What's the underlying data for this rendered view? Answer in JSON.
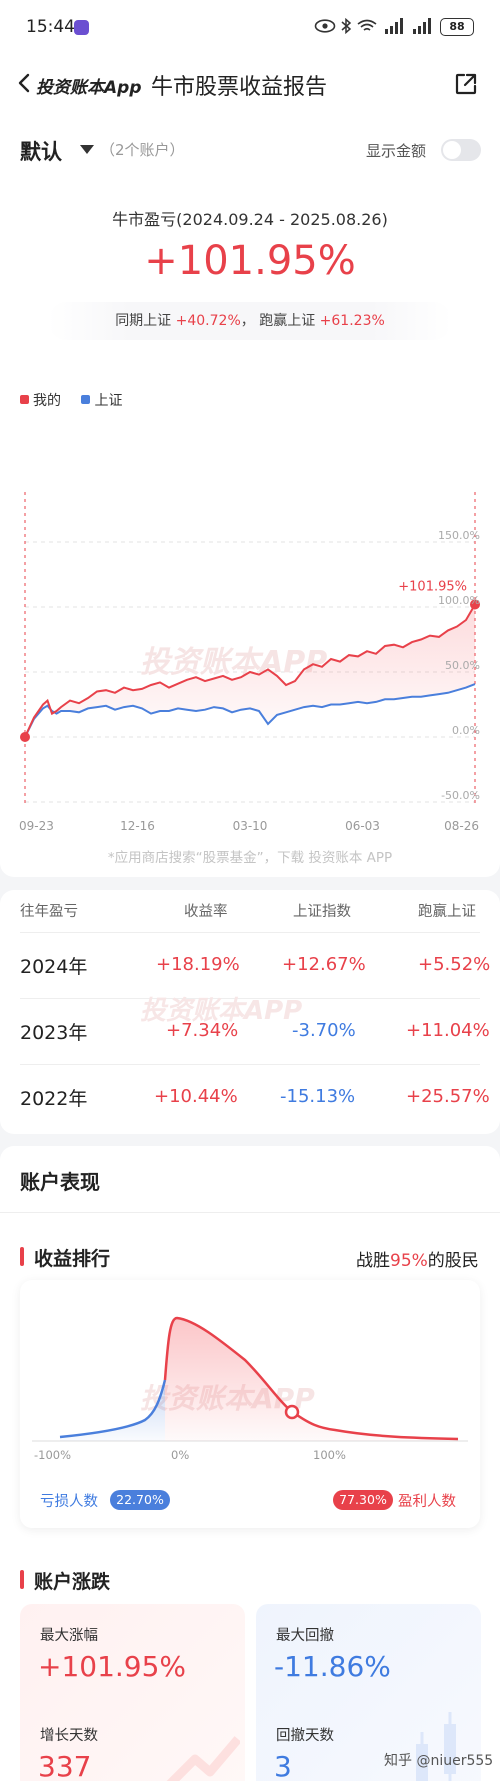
{
  "status_bar": {
    "time": "15:44",
    "battery": "88",
    "icons": [
      "eye-icon",
      "bluetooth-icon",
      "wifi-icon",
      "signal-icon",
      "signal-icon"
    ]
  },
  "nav": {
    "back_icon": "chevron-left-icon",
    "brand": "投资账本App",
    "title": "牛市股票收益报告",
    "share_icon": "share-icon"
  },
  "header": {
    "account_name": "默认",
    "account_count": "（2个账户）",
    "show_amount_label": "显示金额",
    "show_amount_on": false,
    "period_label": "牛市盈亏(2024.09.24 - 2025.08.26)",
    "total_return": "+101.95%",
    "compare_prefix": "同期上证",
    "compare_index_value": "+40.72%",
    "compare_sep": "，",
    "compare_beat_label": "跑赢上证",
    "compare_beat_value": "+61.23%"
  },
  "chart_data": {
    "type": "line",
    "legend": [
      {
        "name": "我的",
        "color": "#e8414a"
      },
      {
        "name": "上证",
        "color": "#4a7fdc"
      }
    ],
    "x_ticks": [
      "09-23",
      "12-16",
      "03-10",
      "06-03",
      "08-26"
    ],
    "y_ticks": [
      "150.0%",
      "100.0%",
      "50.0%",
      "0.0%",
      "-50.0%"
    ],
    "ylim": [
      -50,
      150
    ],
    "end_label": "+101.95%",
    "x": [
      0,
      2,
      4,
      5,
      6,
      7,
      8,
      10,
      12,
      14,
      16,
      18,
      20,
      22,
      24,
      26,
      28,
      30,
      32,
      34,
      36,
      38,
      40,
      42,
      44,
      46,
      48,
      50,
      52,
      54,
      56,
      58,
      60,
      62,
      64,
      66,
      68,
      70,
      72,
      74,
      76,
      78,
      80,
      82,
      84,
      86,
      88,
      90,
      92,
      94,
      96,
      98,
      100
    ],
    "series": [
      {
        "name": "我的",
        "values": [
          0,
          15,
          25,
          28,
          18,
          20,
          23,
          28,
          26,
          30,
          35,
          36,
          34,
          38,
          36,
          37,
          40,
          42,
          38,
          41,
          44,
          46,
          43,
          45,
          47,
          44,
          46,
          50,
          48,
          52,
          47,
          40,
          43,
          52,
          56,
          54,
          60,
          58,
          63,
          62,
          66,
          64,
          70,
          71,
          69,
          73,
          75,
          78,
          77,
          82,
          85,
          90,
          101.95
        ]
      },
      {
        "name": "上证",
        "values": [
          0,
          14,
          22,
          24,
          20,
          18,
          20,
          20,
          19,
          22,
          23,
          24,
          21,
          23,
          24,
          22,
          18,
          20,
          20,
          22,
          21,
          20,
          21,
          23,
          22,
          19,
          21,
          22,
          20,
          10,
          17,
          19,
          21,
          23,
          24,
          23,
          25,
          25,
          26,
          27,
          26,
          27,
          29,
          29,
          30,
          31,
          31,
          32,
          33,
          34,
          36,
          38,
          40.72
        ]
      }
    ],
    "grid": true
  },
  "app_hint": "*应用商店搜索“股票基金”，下载 投资账本 APP",
  "watermark": "投资账本APP",
  "yearly": {
    "headers": [
      "往年盈亏",
      "收益率",
      "上证指数",
      "跑赢上证"
    ],
    "rows": [
      {
        "year": "2024年",
        "return": "+18.19%",
        "index": "+12.67%",
        "beat": "+5.52%"
      },
      {
        "year": "2023年",
        "return": "+7.34%",
        "index": "-3.70%",
        "beat": "+11.04%"
      },
      {
        "year": "2022年",
        "return": "+10.44%",
        "index": "-15.13%",
        "beat": "+25.57%"
      }
    ]
  },
  "performance": {
    "title": "账户表现",
    "ranking_title": "收益排行",
    "beat_prefix": "战胜",
    "beat_value": "95%",
    "beat_suffix": "的股民",
    "dist_ticks": [
      "-100%",
      "0%",
      "100%"
    ],
    "loss_label": "亏损人数",
    "loss_pct": "22.70%",
    "profit_pct": "77.30%",
    "profit_label": "盈利人数",
    "change_title": "账户涨跌",
    "stats": {
      "max_gain_label": "最大涨幅",
      "max_gain": "+101.95%",
      "max_drawdown_label": "最大回撤",
      "max_drawdown": "-11.86%",
      "up_days_label": "增长天数",
      "up_days": "337",
      "down_days_label": "回撤天数",
      "down_days": "3"
    }
  },
  "footer_watermark": "知乎 @niuer555"
}
